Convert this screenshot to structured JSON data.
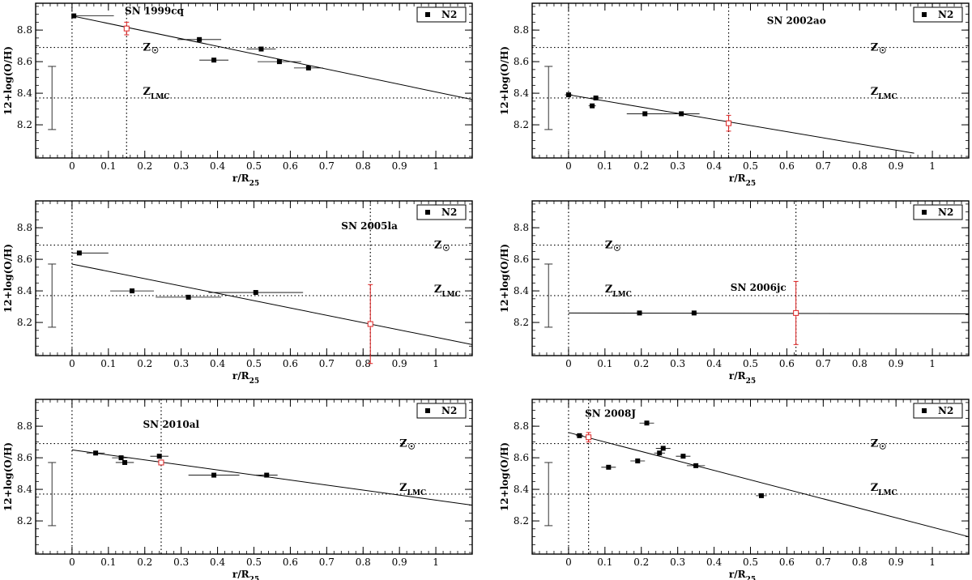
{
  "figure": {
    "xlabel": "r/R",
    "xlabel_sub": "25",
    "ylabel": "12+log(O/H)",
    "legend": "N2",
    "zsun_label": "Z",
    "zsun_symbol": "☉",
    "zlmc_label": "Z",
    "zlmc_sub": "LMC"
  },
  "chart_data": [
    {
      "type": "scatter",
      "sn": "SN 1999cq",
      "xlim": [
        -0.1,
        1.1
      ],
      "ylim": [
        7.99,
        8.97
      ],
      "xticks": [
        "0",
        "0.1",
        "0.2",
        "0.3",
        "0.4",
        "0.5",
        "0.6",
        "0.7",
        "0.8",
        "0.9",
        "1"
      ],
      "yticks": [
        "8.2",
        "8.4",
        "8.6",
        "8.8"
      ],
      "zsun": 8.69,
      "zlmc": 8.37,
      "points": [
        {
          "x": 0.005,
          "y": 8.89,
          "xerr": [
            0.005,
            0.11
          ]
        },
        {
          "x": 0.35,
          "y": 8.74,
          "xerr": [
            0.06,
            0.06
          ]
        },
        {
          "x": 0.39,
          "y": 8.61,
          "xerr": [
            0.04,
            0.04
          ]
        },
        {
          "x": 0.52,
          "y": 8.68,
          "xerr": [
            0.04,
            0.04
          ]
        },
        {
          "x": 0.57,
          "y": 8.6,
          "xerr": [
            0.06,
            0.06
          ]
        },
        {
          "x": 0.65,
          "y": 8.56,
          "xerr": [
            0.04,
            0.04
          ]
        }
      ],
      "fit": {
        "x0": 0.0,
        "y0": 8.89,
        "x1": 1.1,
        "y1": 8.36
      },
      "sn_point": {
        "x": 0.15,
        "y": 8.81,
        "yerr": 0.04
      },
      "sn_vline": 0.15,
      "errorbar": {
        "y_low": 8.17,
        "y_high": 8.57
      },
      "sn_label_pos": [
        0.145,
        8.9
      ],
      "zsun_pos": [
        0.195,
        8.67
      ],
      "zlmc_pos": [
        0.195,
        8.39
      ]
    },
    {
      "type": "scatter",
      "sn": "SN 2002ao",
      "xlim": [
        -0.1,
        1.1
      ],
      "ylim": [
        7.99,
        8.97
      ],
      "xticks": [
        "0",
        "0.1",
        "0.2",
        "0.3",
        "0.4",
        "0.5",
        "0.6",
        "0.7",
        "0.8",
        "0.9",
        "1"
      ],
      "yticks": [
        "8.2",
        "8.4",
        "8.6",
        "8.8"
      ],
      "zsun": 8.69,
      "zlmc": 8.37,
      "points": [
        {
          "x": 0.0,
          "y": 8.39,
          "xerr": [
            0.01,
            0.01
          ]
        },
        {
          "x": 0.075,
          "y": 8.37,
          "xerr": [
            0.015,
            0.015
          ]
        },
        {
          "x": 0.065,
          "y": 8.32,
          "xerr": [
            0.01,
            0.01
          ]
        },
        {
          "x": 0.21,
          "y": 8.27,
          "xerr": [
            0.05,
            0.05
          ]
        },
        {
          "x": 0.31,
          "y": 8.27,
          "xerr": [
            0.05,
            0.05
          ]
        }
      ],
      "fit": {
        "x0": 0.0,
        "y0": 8.39,
        "x1": 0.95,
        "y1": 8.02
      },
      "sn_point": {
        "x": 0.44,
        "y": 8.21,
        "yerr": 0.05
      },
      "sn_vline": 0.44,
      "errorbar": {
        "y_low": 8.17,
        "y_high": 8.57
      },
      "sn_label_pos": [
        0.545,
        8.84
      ],
      "zsun_pos": [
        0.83,
        8.67
      ],
      "zlmc_pos": [
        0.83,
        8.39
      ]
    },
    {
      "type": "scatter",
      "sn": "SN 2005la",
      "xlim": [
        -0.1,
        1.1
      ],
      "ylim": [
        7.99,
        8.97
      ],
      "xticks": [
        "0",
        "0.1",
        "0.2",
        "0.3",
        "0.4",
        "0.5",
        "0.6",
        "0.7",
        "0.8",
        "0.9",
        "1"
      ],
      "yticks": [
        "8.2",
        "8.4",
        "8.6",
        "8.8"
      ],
      "zsun": 8.69,
      "zlmc": 8.37,
      "points": [
        {
          "x": 0.02,
          "y": 8.64,
          "xerr": [
            0.02,
            0.08
          ]
        },
        {
          "x": 0.165,
          "y": 8.4,
          "xerr": [
            0.06,
            0.06
          ]
        },
        {
          "x": 0.32,
          "y": 8.36,
          "xerr": [
            0.09,
            0.09
          ]
        },
        {
          "x": 0.505,
          "y": 8.39,
          "xerr": [
            0.13,
            0.13
          ]
        }
      ],
      "fit": {
        "x0": 0.0,
        "y0": 8.57,
        "x1": 1.1,
        "y1": 8.06
      },
      "sn_point": {
        "x": 0.82,
        "y": 8.19,
        "yerr": 0.25
      },
      "sn_vline": 0.82,
      "errorbar": {
        "y_low": 8.17,
        "y_high": 8.57
      },
      "sn_label_pos": [
        0.74,
        8.79
      ],
      "zsun_pos": [
        0.995,
        8.67
      ],
      "zlmc_pos": [
        0.995,
        8.39
      ]
    },
    {
      "type": "scatter",
      "sn": "SN 2006jc",
      "xlim": [
        -0.1,
        1.1
      ],
      "ylim": [
        7.99,
        8.97
      ],
      "xticks": [
        "0",
        "0.1",
        "0.2",
        "0.3",
        "0.4",
        "0.5",
        "0.6",
        "0.7",
        "0.8",
        "0.9",
        "1"
      ],
      "yticks": [
        "8.2",
        "8.4",
        "8.6",
        "8.8"
      ],
      "zsun": 8.69,
      "zlmc": 8.37,
      "points": [
        {
          "x": 0.195,
          "y": 8.26,
          "xerr": [
            0.01,
            0.01
          ]
        },
        {
          "x": 0.345,
          "y": 8.26,
          "xerr": [
            0.01,
            0.01
          ]
        }
      ],
      "fit": {
        "x0": 0.0,
        "y0": 8.26,
        "x1": 1.1,
        "y1": 8.255
      },
      "sn_point": {
        "x": 0.625,
        "y": 8.26,
        "yerr": 0.2
      },
      "sn_vline": 0.625,
      "errorbar": {
        "y_low": 8.17,
        "y_high": 8.57
      },
      "sn_label_pos": [
        0.445,
        8.4
      ],
      "zsun_pos": [
        0.1,
        8.67
      ],
      "zlmc_pos": [
        0.1,
        8.39
      ]
    },
    {
      "type": "scatter",
      "sn": "SN 2010al",
      "xlim": [
        -0.1,
        1.1
      ],
      "ylim": [
        7.99,
        8.97
      ],
      "xticks": [
        "0",
        "0.1",
        "0.2",
        "0.3",
        "0.4",
        "0.5",
        "0.6",
        "0.7",
        "0.8",
        "0.9",
        "1"
      ],
      "yticks": [
        "8.2",
        "8.4",
        "8.6",
        "8.8"
      ],
      "zsun": 8.69,
      "zlmc": 8.37,
      "points": [
        {
          "x": 0.065,
          "y": 8.63,
          "xerr": [
            0.025,
            0.025
          ]
        },
        {
          "x": 0.135,
          "y": 8.6,
          "xerr": [
            0.025,
            0.025
          ]
        },
        {
          "x": 0.145,
          "y": 8.57,
          "xerr": [
            0.025,
            0.025
          ]
        },
        {
          "x": 0.24,
          "y": 8.61,
          "xerr": [
            0.025,
            0.025
          ]
        },
        {
          "x": 0.39,
          "y": 8.49,
          "xerr": [
            0.07,
            0.07
          ]
        },
        {
          "x": 0.535,
          "y": 8.49,
          "xerr": [
            0.03,
            0.03
          ]
        }
      ],
      "fit": {
        "x0": 0.0,
        "y0": 8.65,
        "x1": 1.1,
        "y1": 8.3
      },
      "sn_point": {
        "x": 0.245,
        "y": 8.57,
        "yerr": 0.015
      },
      "sn_vline": 0.245,
      "errorbar": {
        "y_low": 8.17,
        "y_high": 8.57
      },
      "sn_label_pos": [
        0.195,
        8.79
      ],
      "zsun_pos": [
        0.9,
        8.67
      ],
      "zlmc_pos": [
        0.9,
        8.39
      ]
    },
    {
      "type": "scatter",
      "sn": "SN 2008J",
      "xlim": [
        -0.1,
        1.1
      ],
      "ylim": [
        7.99,
        8.97
      ],
      "xticks": [
        "0",
        "0.1",
        "0.2",
        "0.3",
        "0.4",
        "0.5",
        "0.6",
        "0.7",
        "0.8",
        "0.9",
        "1"
      ],
      "yticks": [
        "8.2",
        "8.4",
        "8.6",
        "8.8"
      ],
      "zsun": 8.69,
      "zlmc": 8.37,
      "points": [
        {
          "x": 0.03,
          "y": 8.74,
          "xerr": [
            0.01,
            0.01
          ]
        },
        {
          "x": 0.11,
          "y": 8.54,
          "xerr": [
            0.02,
            0.02
          ]
        },
        {
          "x": 0.19,
          "y": 8.58,
          "xerr": [
            0.02,
            0.02
          ]
        },
        {
          "x": 0.215,
          "y": 8.82,
          "xerr": [
            0.02,
            0.02
          ]
        },
        {
          "x": 0.25,
          "y": 8.63,
          "xerr": [
            0.015,
            0.015
          ]
        },
        {
          "x": 0.26,
          "y": 8.66,
          "xerr": [
            0.02,
            0.02
          ]
        },
        {
          "x": 0.315,
          "y": 8.61,
          "xerr": [
            0.02,
            0.02
          ]
        },
        {
          "x": 0.35,
          "y": 8.55,
          "xerr": [
            0.025,
            0.025
          ]
        },
        {
          "x": 0.53,
          "y": 8.36,
          "xerr": [
            0.015,
            0.015
          ]
        }
      ],
      "fit": {
        "x0": 0.0,
        "y0": 8.76,
        "x1": 1.1,
        "y1": 8.1
      },
      "sn_point": {
        "x": 0.055,
        "y": 8.73,
        "yerr": 0.03
      },
      "sn_vline": 0.055,
      "errorbar": {
        "y_low": 8.17,
        "y_high": 8.57
      },
      "sn_label_pos": [
        0.045,
        8.86
      ],
      "zsun_pos": [
        0.83,
        8.67
      ],
      "zlmc_pos": [
        0.83,
        8.39
      ]
    }
  ]
}
